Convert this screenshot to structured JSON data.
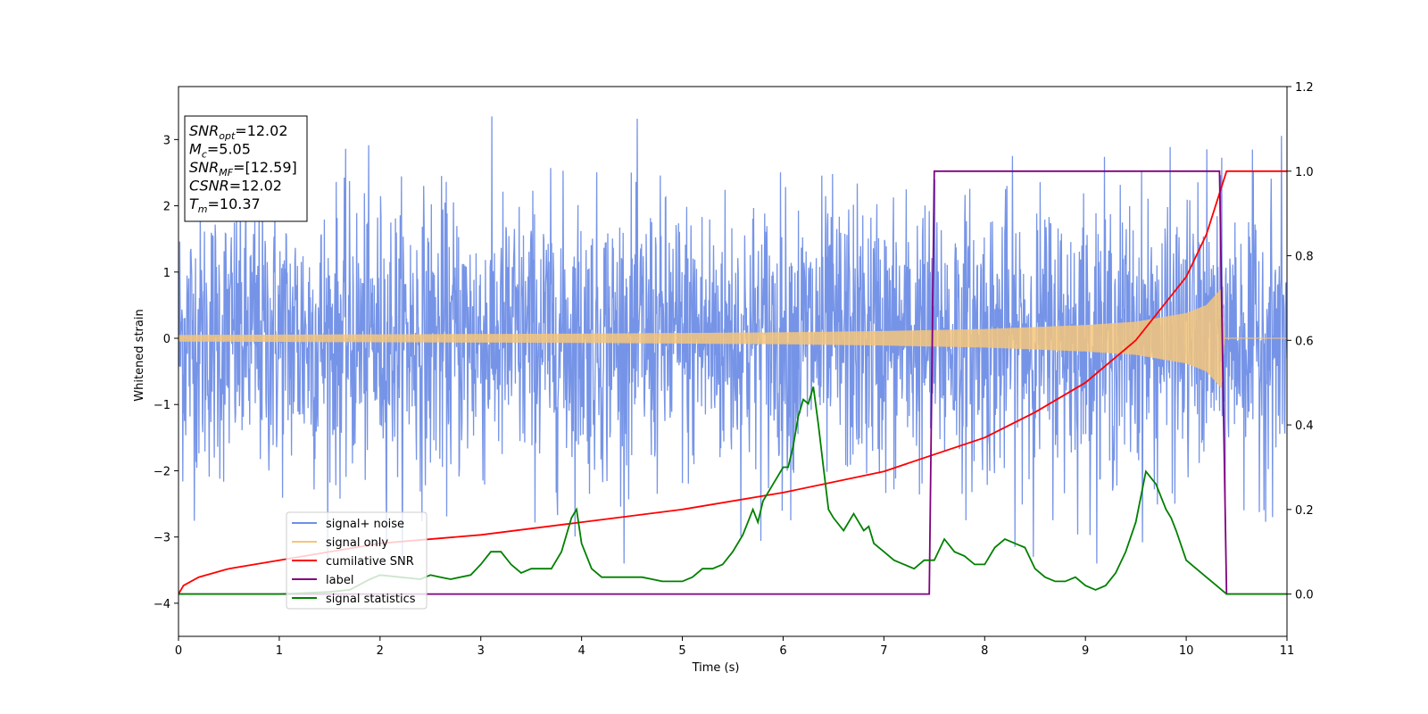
{
  "chart_data": {
    "type": "line",
    "title": "",
    "xlabel": "Time (s)",
    "ylabel_left": "Whitened strain",
    "ylabel_right": "",
    "xlim": [
      0,
      11
    ],
    "ylim_left": [
      -4.5,
      3.8
    ],
    "ylim_right": [
      -0.1,
      1.2
    ],
    "x_ticks": [
      0,
      1,
      2,
      3,
      4,
      5,
      6,
      7,
      8,
      9,
      10,
      11
    ],
    "y_left_ticks": [
      3,
      2,
      1,
      0,
      -1,
      -2,
      -3,
      -4
    ],
    "y_right_ticks": [
      1.2,
      1.0,
      0.8,
      0.6,
      0.4,
      0.2,
      0.0
    ],
    "y_left_tick_labels": [
      "3",
      "2",
      "1",
      "0",
      "−1",
      "−2",
      "−3",
      "−4"
    ],
    "y_right_tick_labels": [
      "1.2",
      "1.0",
      "0.8",
      "0.6",
      "0.4",
      "0.2",
      "0.0"
    ],
    "grid": false,
    "legend_location": "lower-left",
    "series": [
      {
        "name": "signal+ noise",
        "color": "#6f8ee6",
        "axis": "left",
        "description": "whitened noise plus signal, amplitude roughly within [-3.5, 3.3]"
      },
      {
        "name": "signal only",
        "color": "#f5c57a",
        "axis": "left",
        "description": "chirp signal, envelope growing from ~0.05 to ~0.75 at t≈10.35, then zero",
        "envelope": {
          "t": [
            0,
            2,
            4,
            6,
            7,
            8,
            9,
            9.5,
            10,
            10.2,
            10.35,
            10.38
          ],
          "amp": [
            0.05,
            0.06,
            0.07,
            0.09,
            0.11,
            0.14,
            0.2,
            0.25,
            0.38,
            0.5,
            0.75,
            0.0
          ]
        }
      },
      {
        "name": "cumilative SNR",
        "color": "#ff0000",
        "axis": "right",
        "x": [
          0,
          0.05,
          0.2,
          0.5,
          1,
          2,
          3,
          4,
          5,
          6,
          7,
          7.5,
          8,
          8.5,
          9,
          9.5,
          10,
          10.2,
          10.4,
          11
        ],
        "y": [
          0.0,
          0.02,
          0.04,
          0.06,
          0.08,
          0.12,
          0.14,
          0.17,
          0.2,
          0.24,
          0.29,
          0.33,
          0.37,
          0.43,
          0.5,
          0.6,
          0.75,
          0.85,
          1.0,
          1.0
        ]
      },
      {
        "name": "label",
        "color": "#800080",
        "axis": "right",
        "x": [
          0,
          7.45,
          7.5,
          10.33,
          10.4,
          11
        ],
        "y": [
          0.0,
          0.0,
          1.0,
          1.0,
          0.0,
          0.0
        ]
      },
      {
        "name": "signal statistics",
        "color": "#008000",
        "axis": "right",
        "x": [
          0,
          1.0,
          1.5,
          1.7,
          1.9,
          2.0,
          2.2,
          2.4,
          2.5,
          2.6,
          2.7,
          2.9,
          3.0,
          3.1,
          3.2,
          3.3,
          3.4,
          3.5,
          3.6,
          3.7,
          3.8,
          3.9,
          3.95,
          4.0,
          4.1,
          4.2,
          4.3,
          4.4,
          4.5,
          4.6,
          4.7,
          4.8,
          4.9,
          5.0,
          5.1,
          5.2,
          5.3,
          5.4,
          5.5,
          5.6,
          5.7,
          5.75,
          5.8,
          5.9,
          6.0,
          6.05,
          6.1,
          6.15,
          6.2,
          6.25,
          6.3,
          6.35,
          6.4,
          6.45,
          6.5,
          6.6,
          6.7,
          6.8,
          6.85,
          6.9,
          7.0,
          7.1,
          7.2,
          7.3,
          7.4,
          7.5,
          7.6,
          7.7,
          7.8,
          7.9,
          8.0,
          8.1,
          8.2,
          8.3,
          8.4,
          8.5,
          8.6,
          8.7,
          8.8,
          8.9,
          9.0,
          9.1,
          9.2,
          9.3,
          9.4,
          9.5,
          9.6,
          9.7,
          9.8,
          9.85,
          9.9,
          10.0,
          10.1,
          10.2,
          10.3,
          10.4,
          10.6,
          11
        ],
        "y": [
          0.0,
          0.0,
          0.005,
          0.01,
          0.035,
          0.045,
          0.04,
          0.035,
          0.045,
          0.04,
          0.035,
          0.045,
          0.07,
          0.1,
          0.1,
          0.07,
          0.05,
          0.06,
          0.06,
          0.06,
          0.1,
          0.18,
          0.2,
          0.12,
          0.06,
          0.04,
          0.04,
          0.04,
          0.04,
          0.04,
          0.035,
          0.03,
          0.03,
          0.03,
          0.04,
          0.06,
          0.06,
          0.07,
          0.1,
          0.14,
          0.2,
          0.17,
          0.22,
          0.26,
          0.3,
          0.3,
          0.35,
          0.42,
          0.46,
          0.45,
          0.49,
          0.4,
          0.3,
          0.2,
          0.18,
          0.15,
          0.19,
          0.15,
          0.16,
          0.12,
          0.1,
          0.08,
          0.07,
          0.06,
          0.08,
          0.08,
          0.13,
          0.1,
          0.09,
          0.07,
          0.07,
          0.11,
          0.13,
          0.12,
          0.11,
          0.06,
          0.04,
          0.03,
          0.03,
          0.04,
          0.02,
          0.01,
          0.02,
          0.05,
          0.1,
          0.17,
          0.29,
          0.26,
          0.2,
          0.18,
          0.15,
          0.08,
          0.06,
          0.04,
          0.02,
          0.0,
          0.0,
          0.0
        ]
      }
    ]
  },
  "info_box": {
    "lines": [
      {
        "main": "SNR",
        "sub": "opt",
        "value": "=12.02"
      },
      {
        "main": "M",
        "sub": "c",
        "value": "=5.05"
      },
      {
        "main": "SNR",
        "sub": "MF",
        "value": "=[12.59]"
      },
      {
        "main": "CSNR",
        "sub": "",
        "value": "=12.02"
      },
      {
        "main": "T",
        "sub": "m",
        "value": "=10.37"
      }
    ]
  }
}
